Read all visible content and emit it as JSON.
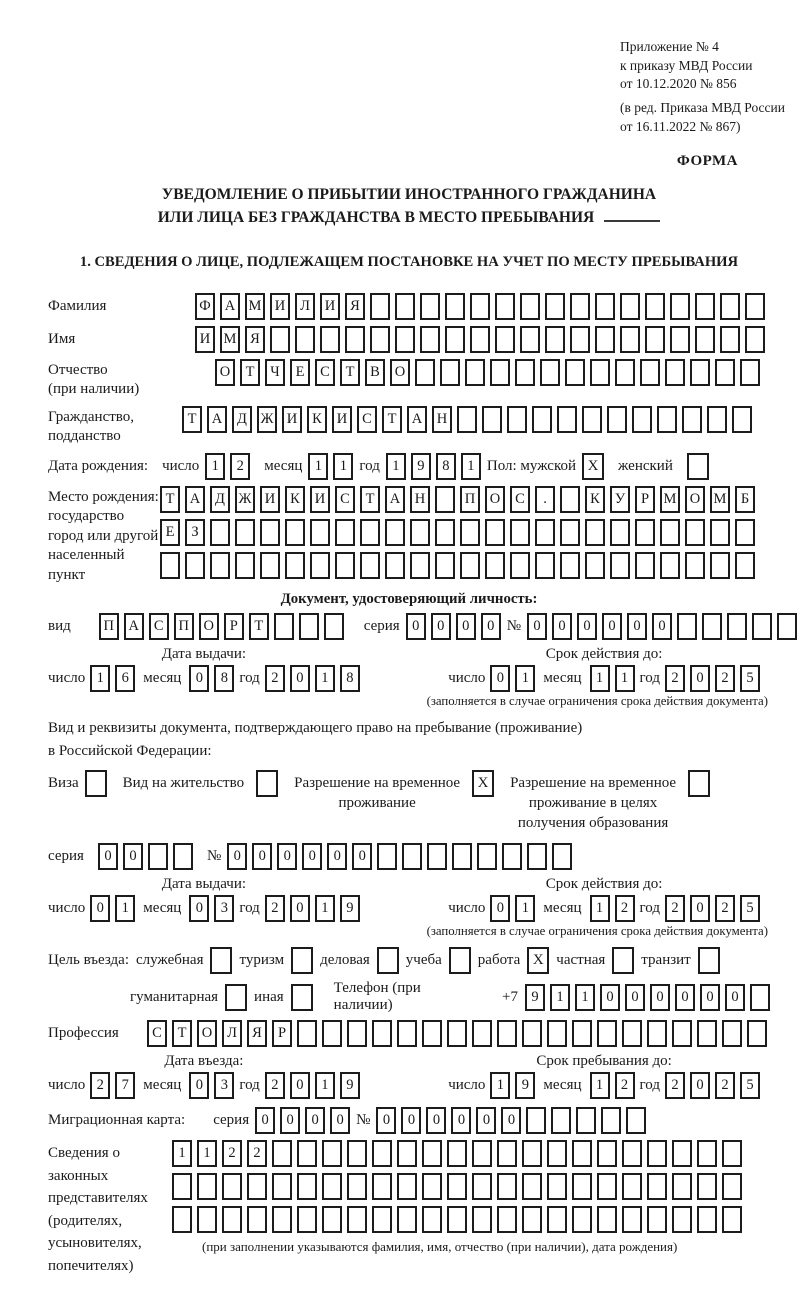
{
  "doc": {
    "ref_lines": [
      "Приложение № 4",
      "к приказу МВД России",
      "от 10.12.2020 № 856"
    ],
    "ref_amendment": [
      "(в ред. Приказа МВД России",
      "от 16.11.2022 № 867)"
    ],
    "forma": "ФОРМА",
    "title_line1": "УВЕДОМЛЕНИЕ О ПРИБЫТИИ ИНОСТРАННОГО ГРАЖДАНИНА",
    "title_line2": "ИЛИ ЛИЦА БЕЗ ГРАЖДАНСТВА В МЕСТО ПРЕБЫВАНИЯ",
    "section1_heading": "1. СВЕДЕНИЯ О ЛИЦЕ, ПОДЛЕЖАЩЕМ ПОСТАНОВКЕ НА УЧЕТ ПО МЕСТУ ПРЕБЫВАНИЯ"
  },
  "labels": {
    "day": "число",
    "month": "месяц",
    "year": "год",
    "series": "серия",
    "number": "№",
    "issue_date": "Дата выдачи:",
    "valid_until": "Срок действия до:",
    "expiry_note": "(заполняется в случае ограничения срока действия документа)"
  },
  "surname": {
    "label": "Фамилия",
    "cells": {
      "chars": "ФАМИЛИЯ",
      "n": 23
    }
  },
  "name": {
    "label": "Имя",
    "cells": {
      "chars": "ИМЯ",
      "n": 23
    }
  },
  "patronymic": {
    "label_lines": [
      "Отчество",
      "(при наличии)"
    ],
    "cells": {
      "chars": "ОТЧЕСТВО",
      "n": 22
    }
  },
  "citizenship": {
    "label_lines": [
      "Гражданство,",
      "подданство"
    ],
    "cells": {
      "chars": "ТАДЖИКИСТАН",
      "n": 23
    }
  },
  "birth_date": {
    "label": "Дата рождения:",
    "day": {
      "chars": "12",
      "n": 2
    },
    "month": {
      "chars": "11",
      "n": 2
    },
    "year": {
      "chars": "1981",
      "n": 4
    },
    "gender_label": "Пол: мужской",
    "male": "X",
    "female_label": "женский",
    "female": ""
  },
  "birth_place": {
    "label_lines": [
      "Место рождения:",
      "государство",
      "город или другой",
      "населенный пункт"
    ],
    "row1": {
      "chars": "ТАДЖИКИСТАН ПОС. КУРМОМБ",
      "n": 24
    },
    "row2": {
      "chars": "ЕЗ",
      "n": 24
    },
    "row3": {
      "chars": "",
      "n": 24
    }
  },
  "identity_doc": {
    "heading": "Документ, удостоверяющий личность:",
    "type_label": "вид",
    "type": {
      "chars": "ПАСПОРТ",
      "n": 10
    },
    "series": {
      "chars": "0000",
      "n": 4
    },
    "number": {
      "chars": "000000",
      "n": 11
    },
    "issue": {
      "day": {
        "chars": "16",
        "n": 2
      },
      "month": {
        "chars": "08",
        "n": 2
      },
      "year": {
        "chars": "2018",
        "n": 4
      }
    },
    "expiry": {
      "day": {
        "chars": "01",
        "n": 2
      },
      "month": {
        "chars": "11",
        "n": 2
      },
      "year": {
        "chars": "2025",
        "n": 4
      }
    }
  },
  "permit": {
    "intro_line1": "Вид и реквизиты документа, подтверждающего право на пребывание (проживание)",
    "intro_line2": "в Российской Федерации:",
    "options": [
      {
        "lines": [
          "Виза"
        ],
        "value": ""
      },
      {
        "lines": [
          "Вид на жительство"
        ],
        "value": ""
      },
      {
        "lines": [
          "Разрешение на временное",
          "проживание"
        ],
        "value": "X"
      },
      {
        "lines": [
          "Разрешение на временное",
          "проживание в целях",
          "получения образования"
        ],
        "value": ""
      }
    ],
    "series": {
      "chars": "00",
      "n": 4
    },
    "number": {
      "chars": "000000",
      "n": 14
    },
    "issue": {
      "day": {
        "chars": "01",
        "n": 2
      },
      "month": {
        "chars": "03",
        "n": 2
      },
      "year": {
        "chars": "2019",
        "n": 4
      }
    },
    "expiry": {
      "day": {
        "chars": "01",
        "n": 2
      },
      "month": {
        "chars": "12",
        "n": 2
      },
      "year": {
        "chars": "2025",
        "n": 4
      }
    }
  },
  "purpose": {
    "intro": "Цель въезда:",
    "options_row1": [
      {
        "label": "служебная",
        "value": ""
      },
      {
        "label": "туризм",
        "value": ""
      },
      {
        "label": "деловая",
        "value": ""
      },
      {
        "label": "учеба",
        "value": ""
      },
      {
        "label": "работа",
        "value": "X"
      },
      {
        "label": "частная",
        "value": ""
      },
      {
        "label": "транзит",
        "value": ""
      }
    ],
    "options_row2": [
      {
        "label": "гуманитарная",
        "value": ""
      },
      {
        "label": "иная",
        "value": ""
      }
    ],
    "phone_label": "Телефон (при наличии)",
    "phone_prefix": "+7",
    "phone_cells": {
      "chars": "911000000",
      "n": 10
    }
  },
  "profession": {
    "label": "Профессия",
    "cells": {
      "chars": "СТОЛЯР",
      "n": 25
    }
  },
  "entry": {
    "head_left": "Дата въезда:",
    "head_right": "Срок пребывания до:",
    "date": {
      "day": {
        "chars": "27",
        "n": 2
      },
      "month": {
        "chars": "03",
        "n": 2
      },
      "year": {
        "chars": "2019",
        "n": 4
      }
    },
    "until": {
      "day": {
        "chars": "19",
        "n": 2
      },
      "month": {
        "chars": "12",
        "n": 2
      },
      "year": {
        "chars": "2025",
        "n": 4
      }
    }
  },
  "migration_card": {
    "label": "Миграционная карта:",
    "series": {
      "chars": "0000",
      "n": 4
    },
    "number": {
      "chars": "000000",
      "n": 11
    }
  },
  "representatives": {
    "label_lines": [
      "Сведения о",
      "законных",
      "представителях",
      "(родителях,",
      "усыновителях,",
      "попечителях)"
    ],
    "row1": {
      "chars": "1122",
      "n": 23
    },
    "row2": {
      "chars": "",
      "n": 23
    },
    "row3": {
      "chars": "",
      "n": 23
    },
    "note": "(при заполнении указываются фамилия, имя, отчество (при наличии), дата рождения)"
  }
}
